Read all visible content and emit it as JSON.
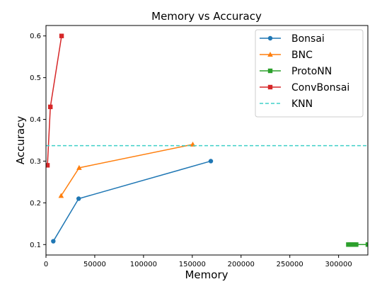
{
  "chart_data": {
    "type": "line",
    "title": "Memory vs Accuracy",
    "xlabel": "Memory",
    "ylabel": "Accuracy",
    "xlim": [
      0,
      330000
    ],
    "ylim": [
      0.075,
      0.625
    ],
    "xticks": [
      0,
      50000,
      100000,
      150000,
      200000,
      250000,
      300000
    ],
    "xtick_labels": [
      "0",
      "50000",
      "100000",
      "150000",
      "200000",
      "250000",
      "300000"
    ],
    "yticks": [
      0.1,
      0.2,
      0.3,
      0.4,
      0.5,
      0.6
    ],
    "ytick_labels": [
      "0.1",
      "0.2",
      "0.3",
      "0.4",
      "0.5",
      "0.6"
    ],
    "grid": false,
    "legend_position": "top-right",
    "series": [
      {
        "name": "Bonsai",
        "color": "#1f77b4",
        "marker": "circle",
        "x": [
          7500,
          33500,
          169000
        ],
        "y": [
          0.108,
          0.21,
          0.3
        ]
      },
      {
        "name": "BNC",
        "color": "#ff7f0e",
        "marker": "triangle",
        "x": [
          15500,
          34000,
          150500
        ],
        "y": [
          0.217,
          0.284,
          0.34
        ]
      },
      {
        "name": "ProtoNN",
        "color": "#2ca02c",
        "marker": "square",
        "x": [
          310000,
          312000,
          314000,
          316000,
          318000,
          330000
        ],
        "y": [
          0.1,
          0.1,
          0.1,
          0.1,
          0.1,
          0.1
        ]
      },
      {
        "name": "ConvBonsai",
        "color": "#d62728",
        "marker": "square",
        "x": [
          1500,
          4500,
          16000
        ],
        "y": [
          0.29,
          0.43,
          0.6
        ]
      },
      {
        "name": "KNN",
        "color": "#40d0c8",
        "marker": "none",
        "dashed": true,
        "x": [
          0,
          330000
        ],
        "y": [
          0.337,
          0.337
        ]
      }
    ]
  }
}
